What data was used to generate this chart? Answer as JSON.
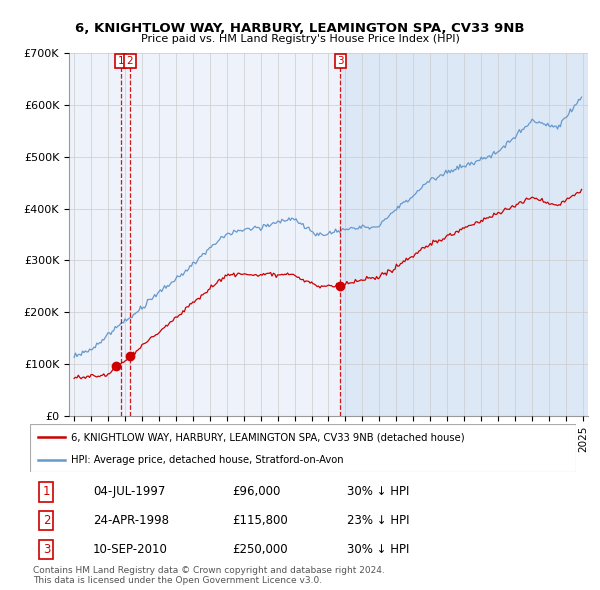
{
  "title": "6, KNIGHTLOW WAY, HARBURY, LEAMINGTON SPA, CV33 9NB",
  "subtitle": "Price paid vs. HM Land Registry's House Price Index (HPI)",
  "legend_line1": "6, KNIGHTLOW WAY, HARBURY, LEAMINGTON SPA, CV33 9NB (detached house)",
  "legend_line2": "HPI: Average price, detached house, Stratford-on-Avon",
  "footer1": "Contains HM Land Registry data © Crown copyright and database right 2024.",
  "footer2": "This data is licensed under the Open Government Licence v3.0.",
  "row_data": [
    [
      "1",
      "04-JUL-1997",
      "£96,000",
      "30% ↓ HPI"
    ],
    [
      "2",
      "24-APR-1998",
      "£115,800",
      "23% ↓ HPI"
    ],
    [
      "3",
      "10-SEP-2010",
      "£250,000",
      "30% ↓ HPI"
    ]
  ],
  "t1_year": 1997.5,
  "t1_val": 96000,
  "t2_year": 1998.3,
  "t2_val": 115800,
  "t3_year": 2010.7,
  "t3_val": 250000,
  "vline1_year": 1997.75,
  "vline2_year": 1998.3,
  "vline3_year": 2010.7,
  "shade_start": 2010.7,
  "red_color": "#cc0000",
  "blue_color": "#6699cc",
  "shade_color": "#dce8f5",
  "bg_color": "#eef2fb",
  "ylim": [
    0,
    700000
  ],
  "xlim_start": 1994.7,
  "xlim_end": 2025.3
}
